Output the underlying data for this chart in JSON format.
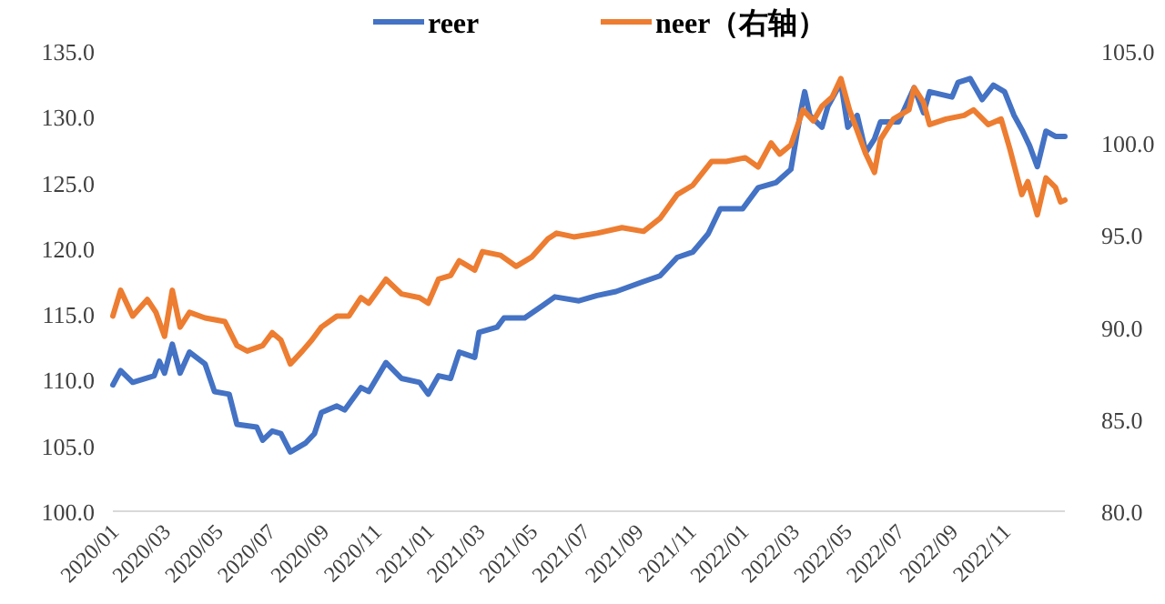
{
  "chart_data": {
    "type": "line",
    "legend": "top",
    "grid": false,
    "line_style": "solid",
    "marker": "none",
    "xticks": [
      {
        "value": "2020-01-01",
        "label": "2020/01"
      },
      {
        "value": "2020-03-01",
        "label": "2020/03"
      },
      {
        "value": "2020-05-01",
        "label": "2020/05"
      },
      {
        "value": "2020-07-01",
        "label": "2020/07"
      },
      {
        "value": "2020-09-01",
        "label": "2020/09"
      },
      {
        "value": "2020-11-01",
        "label": "2020/11"
      },
      {
        "value": "2021-01-01",
        "label": "2021/01"
      },
      {
        "value": "2021-03-01",
        "label": "2021/03"
      },
      {
        "value": "2021-05-01",
        "label": "2021/05"
      },
      {
        "value": "2021-07-01",
        "label": "2021/07"
      },
      {
        "value": "2021-09-01",
        "label": "2021/09"
      },
      {
        "value": "2021-11-01",
        "label": "2021/11"
      },
      {
        "value": "2022-01-01",
        "label": "2022/01"
      },
      {
        "value": "2022-03-01",
        "label": "2022/03"
      },
      {
        "value": "2022-05-01",
        "label": "2022/05"
      },
      {
        "value": "2022-07-01",
        "label": "2022/07"
      },
      {
        "value": "2022-09-01",
        "label": "2022/09"
      },
      {
        "value": "2022-11-01",
        "label": "2022/11"
      }
    ],
    "xlim": [
      "2020-01-01",
      "2023-01-10"
    ],
    "ylim": [
      100,
      135
    ],
    "yticks": [
      {
        "value": 100,
        "label": "100.0"
      },
      {
        "value": 105,
        "label": "105.0"
      },
      {
        "value": 110,
        "label": "110.0"
      },
      {
        "value": 115,
        "label": "115.0"
      },
      {
        "value": 120,
        "label": "120.0"
      },
      {
        "value": 125,
        "label": "125.0"
      },
      {
        "value": 130,
        "label": "130.0"
      },
      {
        "value": 135,
        "label": "135.0"
      }
    ],
    "y2lim": [
      80,
      105
    ],
    "y2ticks": [
      {
        "value": 80,
        "label": "80.0"
      },
      {
        "value": 85,
        "label": "85.0"
      },
      {
        "value": 90,
        "label": "90.0"
      },
      {
        "value": 95,
        "label": "95.0"
      },
      {
        "value": 100,
        "label": "100.0"
      },
      {
        "value": 105,
        "label": "105.0"
      }
    ],
    "series": [
      {
        "name": "reer",
        "color": "#4472c4",
        "x": [
          "2020-01-01",
          "2020-01-10",
          "2020-01-24",
          "2020-02-18",
          "2020-02-24",
          "2020-03-01",
          "2020-03-10",
          "2020-03-19",
          "2020-03-30",
          "2020-04-17",
          "2020-04-28",
          "2020-05-15",
          "2020-05-24",
          "2020-06-16",
          "2020-06-23",
          "2020-07-04",
          "2020-07-14",
          "2020-07-25",
          "2020-08-12",
          "2020-08-22",
          "2020-08-30",
          "2020-09-17",
          "2020-09-26",
          "2020-10-15",
          "2020-10-24",
          "2020-11-13",
          "2020-12-01",
          "2020-12-22",
          "2021-01-01",
          "2021-01-13",
          "2021-01-27",
          "2021-02-06",
          "2021-02-24",
          "2021-03-01",
          "2021-03-22",
          "2021-03-30",
          "2021-04-23",
          "2021-05-13",
          "2021-05-28",
          "2021-06-25",
          "2021-07-16",
          "2021-08-07",
          "2021-09-05",
          "2021-09-27",
          "2021-10-17",
          "2021-11-04",
          "2021-11-22",
          "2021-12-06",
          "2022-01-01",
          "2022-01-19",
          "2022-02-09",
          "2022-02-26",
          "2022-03-10",
          "2022-03-14",
          "2022-03-20",
          "2022-04-03",
          "2022-04-10",
          "2022-04-25",
          "2022-05-03",
          "2022-05-14",
          "2022-05-24",
          "2022-06-03",
          "2022-06-10",
          "2022-07-01",
          "2022-07-19",
          "2022-07-30",
          "2022-08-06",
          "2022-09-01",
          "2022-09-08",
          "2022-09-22",
          "2022-10-06",
          "2022-10-19",
          "2022-11-01",
          "2022-11-12",
          "2022-11-22",
          "2022-11-30",
          "2022-12-09",
          "2022-12-19",
          "2022-12-30",
          "2023-01-10"
        ],
        "values": [
          109.6,
          110.7,
          109.8,
          110.3,
          111.4,
          110.5,
          112.7,
          110.5,
          112.1,
          111.2,
          109.1,
          108.9,
          106.6,
          106.4,
          105.4,
          106.1,
          105.9,
          104.5,
          105.2,
          105.9,
          107.5,
          108.0,
          107.7,
          109.4,
          109.1,
          111.3,
          110.1,
          109.8,
          108.9,
          110.3,
          110.1,
          112.1,
          111.7,
          113.6,
          114.0,
          114.7,
          114.7,
          115.6,
          116.3,
          116.0,
          116.4,
          116.7,
          117.4,
          117.9,
          119.3,
          119.7,
          121.1,
          123.0,
          123.0,
          124.6,
          125.0,
          126.0,
          130.6,
          131.9,
          130.1,
          129.2,
          130.8,
          132.6,
          129.2,
          130.1,
          127.3,
          128.3,
          129.6,
          129.6,
          132.2,
          130.3,
          131.9,
          131.5,
          132.6,
          132.9,
          131.3,
          132.4,
          131.9,
          130.1,
          128.9,
          127.8,
          126.2,
          128.9,
          128.5,
          128.5
        ]
      },
      {
        "name": "neer（右轴）",
        "color": "#ed7d31",
        "axis": "y2",
        "x": [
          "2020-01-01",
          "2020-01-10",
          "2020-01-24",
          "2020-02-10",
          "2020-02-20",
          "2020-03-01",
          "2020-03-10",
          "2020-03-19",
          "2020-03-30",
          "2020-04-17",
          "2020-05-10",
          "2020-05-24",
          "2020-06-05",
          "2020-06-23",
          "2020-07-04",
          "2020-07-14",
          "2020-07-25",
          "2020-08-08",
          "2020-08-19",
          "2020-08-30",
          "2020-09-17",
          "2020-10-01",
          "2020-10-15",
          "2020-10-24",
          "2020-11-13",
          "2020-12-01",
          "2020-12-22",
          "2021-01-01",
          "2021-01-13",
          "2021-01-27",
          "2021-02-06",
          "2021-02-24",
          "2021-03-05",
          "2021-03-26",
          "2021-04-13",
          "2021-05-01",
          "2021-05-20",
          "2021-05-30",
          "2021-06-19",
          "2021-07-16",
          "2021-08-14",
          "2021-09-08",
          "2021-09-27",
          "2021-10-17",
          "2021-11-04",
          "2021-11-26",
          "2021-12-13",
          "2022-01-04",
          "2022-01-19",
          "2022-02-03",
          "2022-02-13",
          "2022-02-26",
          "2022-03-12",
          "2022-03-24",
          "2022-04-03",
          "2022-04-15",
          "2022-04-25",
          "2022-05-05",
          "2022-05-24",
          "2022-06-03",
          "2022-06-10",
          "2022-06-25",
          "2022-07-13",
          "2022-07-19",
          "2022-07-30",
          "2022-08-06",
          "2022-08-25",
          "2022-09-15",
          "2022-09-26",
          "2022-10-13",
          "2022-10-28",
          "2022-11-07",
          "2022-11-21",
          "2022-11-28",
          "2022-12-09",
          "2022-12-19",
          "2022-12-30",
          "2023-01-05",
          "2023-01-10"
        ],
        "values": [
          90.6,
          92.0,
          90.6,
          91.5,
          90.8,
          89.5,
          92.0,
          90.0,
          90.8,
          90.5,
          90.3,
          89.0,
          88.7,
          89.0,
          89.7,
          89.3,
          88.0,
          88.7,
          89.3,
          90.0,
          90.6,
          90.6,
          91.6,
          91.3,
          92.6,
          91.8,
          91.6,
          91.3,
          92.6,
          92.8,
          93.6,
          93.1,
          94.1,
          93.9,
          93.3,
          93.8,
          94.8,
          95.1,
          94.9,
          95.1,
          95.4,
          95.2,
          95.9,
          97.2,
          97.7,
          99.0,
          99.0,
          99.2,
          98.7,
          100.0,
          99.4,
          99.9,
          101.8,
          101.2,
          102.0,
          102.5,
          103.5,
          101.8,
          99.4,
          98.4,
          100.2,
          101.3,
          101.8,
          103.0,
          102.2,
          101.0,
          101.3,
          101.5,
          101.8,
          101.0,
          101.3,
          99.7,
          97.2,
          97.9,
          96.1,
          98.1,
          97.6,
          96.8,
          96.9
        ]
      }
    ]
  }
}
